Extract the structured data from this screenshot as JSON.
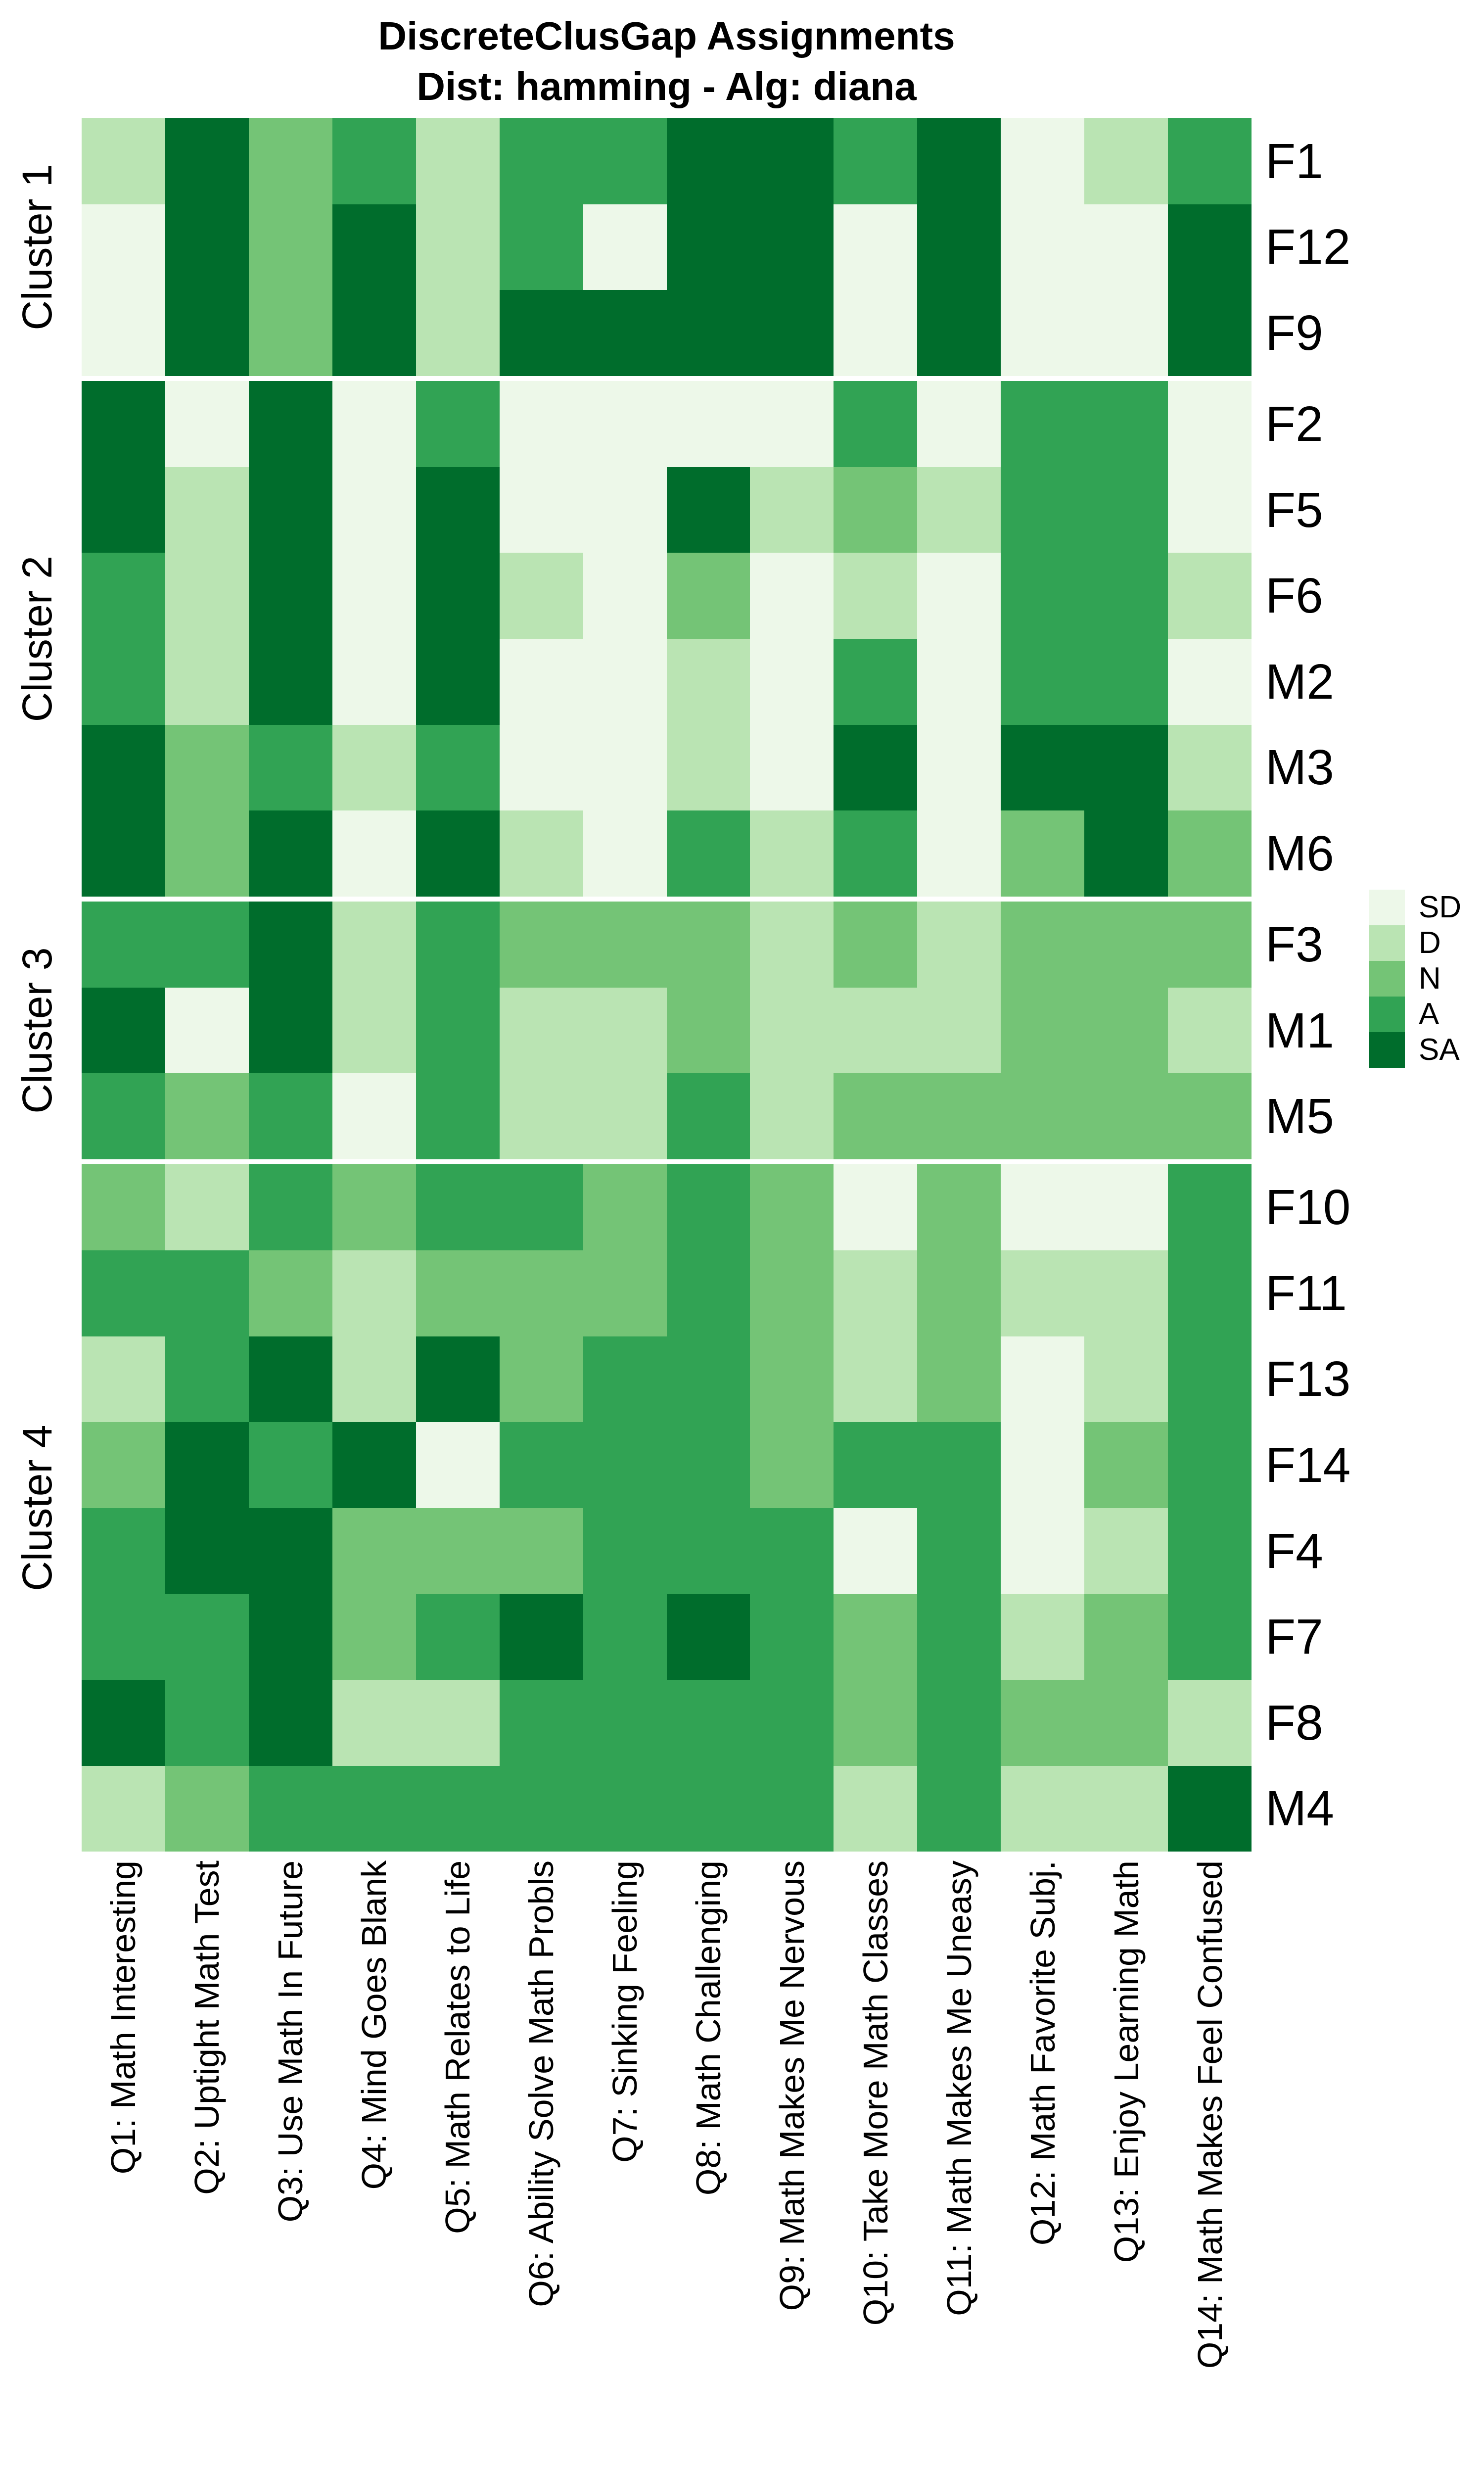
{
  "title": {
    "line1": "DiscreteClusGap Assignments",
    "line2": "Dist: hamming - Alg: diana"
  },
  "legend": {
    "position": "right",
    "entries": [
      {
        "label": "SD",
        "color": "#EDF8E9"
      },
      {
        "label": "D",
        "color": "#BAE4B3"
      },
      {
        "label": "N",
        "color": "#74C476"
      },
      {
        "label": "A",
        "color": "#31A354"
      },
      {
        "label": "SA",
        "color": "#006D2C"
      }
    ]
  },
  "chart_data": {
    "type": "heatmap",
    "title": "DiscreteClusGap Assignments",
    "subtitle": "Dist: hamming - Alg: diana",
    "value_scale": [
      "SD",
      "D",
      "N",
      "A",
      "SA"
    ],
    "colors": {
      "SD": "#EDF8E9",
      "D": "#BAE4B3",
      "N": "#74C476",
      "A": "#31A354",
      "SA": "#006D2C"
    },
    "grid": false,
    "legend_position": "right",
    "x_labels": [
      "Q1: Math Interesting",
      "Q2: Uptight Math Test",
      "Q3: Use Math In Future",
      "Q4: Mind Goes Blank",
      "Q5: Math Relates to Life",
      "Q6: Ability Solve Math Probls",
      "Q7: Sinking Feeling",
      "Q8: Math Challenging",
      "Q9: Math Makes Me Nervous",
      "Q10: Take More Math Classes",
      "Q11: Math Makes Me Uneasy",
      "Q12: Math Favorite Subj.",
      "Q13: Enjoy Learning Math",
      "Q14: Math Makes Feel Confused"
    ],
    "row_groups": [
      {
        "label": "Cluster 1",
        "rows": [
          {
            "label": "F1",
            "values": [
              "D",
              "SA",
              "N",
              "A",
              "D",
              "A",
              "A",
              "SA",
              "SA",
              "A",
              "SA",
              "SD",
              "D",
              "A"
            ]
          },
          {
            "label": "F12",
            "values": [
              "SD",
              "SA",
              "N",
              "SA",
              "D",
              "A",
              "SD",
              "SA",
              "SA",
              "SD",
              "SA",
              "SD",
              "SD",
              "SA"
            ]
          },
          {
            "label": "F9",
            "values": [
              "SD",
              "SA",
              "N",
              "SA",
              "D",
              "SA",
              "SA",
              "SA",
              "SA",
              "SD",
              "SA",
              "SD",
              "SD",
              "SA"
            ]
          }
        ]
      },
      {
        "label": "Cluster 2",
        "rows": [
          {
            "label": "F2",
            "values": [
              "SA",
              "SD",
              "SA",
              "SD",
              "A",
              "SD",
              "SD",
              "SD",
              "SD",
              "A",
              "SD",
              "A",
              "A",
              "SD"
            ]
          },
          {
            "label": "F5",
            "values": [
              "SA",
              "D",
              "SA",
              "SD",
              "SA",
              "SD",
              "SD",
              "SA",
              "D",
              "N",
              "D",
              "A",
              "A",
              "SD"
            ]
          },
          {
            "label": "F6",
            "values": [
              "A",
              "D",
              "SA",
              "SD",
              "SA",
              "D",
              "SD",
              "N",
              "SD",
              "D",
              "SD",
              "A",
              "A",
              "D"
            ]
          },
          {
            "label": "M2",
            "values": [
              "A",
              "D",
              "SA",
              "SD",
              "SA",
              "SD",
              "SD",
              "D",
              "SD",
              "A",
              "SD",
              "A",
              "A",
              "SD"
            ]
          },
          {
            "label": "M3",
            "values": [
              "SA",
              "N",
              "A",
              "D",
              "A",
              "SD",
              "SD",
              "D",
              "SD",
              "SA",
              "SD",
              "SA",
              "SA",
              "D"
            ]
          },
          {
            "label": "M6",
            "values": [
              "SA",
              "N",
              "SA",
              "SD",
              "SA",
              "D",
              "SD",
              "A",
              "D",
              "A",
              "SD",
              "N",
              "SA",
              "N"
            ]
          }
        ]
      },
      {
        "label": "Cluster 3",
        "rows": [
          {
            "label": "F3",
            "values": [
              "A",
              "A",
              "SA",
              "D",
              "A",
              "N",
              "N",
              "N",
              "D",
              "N",
              "D",
              "N",
              "N",
              "N"
            ]
          },
          {
            "label": "M1",
            "values": [
              "SA",
              "SD",
              "SA",
              "D",
              "A",
              "D",
              "D",
              "N",
              "D",
              "D",
              "D",
              "N",
              "N",
              "D"
            ]
          },
          {
            "label": "M5",
            "values": [
              "A",
              "N",
              "A",
              "SD",
              "A",
              "D",
              "D",
              "A",
              "D",
              "N",
              "N",
              "N",
              "N",
              "N"
            ]
          }
        ]
      },
      {
        "label": "Cluster 4",
        "rows": [
          {
            "label": "F10",
            "values": [
              "N",
              "D",
              "A",
              "N",
              "A",
              "A",
              "N",
              "A",
              "N",
              "SD",
              "N",
              "SD",
              "SD",
              "A"
            ]
          },
          {
            "label": "F11",
            "values": [
              "A",
              "A",
              "N",
              "D",
              "N",
              "N",
              "N",
              "A",
              "N",
              "D",
              "N",
              "D",
              "D",
              "A"
            ]
          },
          {
            "label": "F13",
            "values": [
              "D",
              "A",
              "SA",
              "D",
              "SA",
              "N",
              "A",
              "A",
              "N",
              "D",
              "N",
              "SD",
              "D",
              "A"
            ]
          },
          {
            "label": "F14",
            "values": [
              "N",
              "SA",
              "A",
              "SA",
              "SD",
              "A",
              "A",
              "A",
              "N",
              "A",
              "A",
              "SD",
              "N",
              "A"
            ]
          },
          {
            "label": "F4",
            "values": [
              "A",
              "SA",
              "SA",
              "N",
              "N",
              "N",
              "A",
              "A",
              "A",
              "SD",
              "A",
              "SD",
              "D",
              "A"
            ]
          },
          {
            "label": "F7",
            "values": [
              "A",
              "A",
              "SA",
              "N",
              "A",
              "SA",
              "A",
              "SA",
              "A",
              "N",
              "A",
              "D",
              "N",
              "A"
            ]
          },
          {
            "label": "F8",
            "values": [
              "SA",
              "A",
              "SA",
              "D",
              "D",
              "A",
              "A",
              "A",
              "A",
              "N",
              "A",
              "N",
              "N",
              "D"
            ]
          },
          {
            "label": "M4",
            "values": [
              "D",
              "N",
              "A",
              "A",
              "A",
              "A",
              "A",
              "A",
              "A",
              "D",
              "A",
              "D",
              "D",
              "SA"
            ]
          }
        ]
      }
    ]
  }
}
